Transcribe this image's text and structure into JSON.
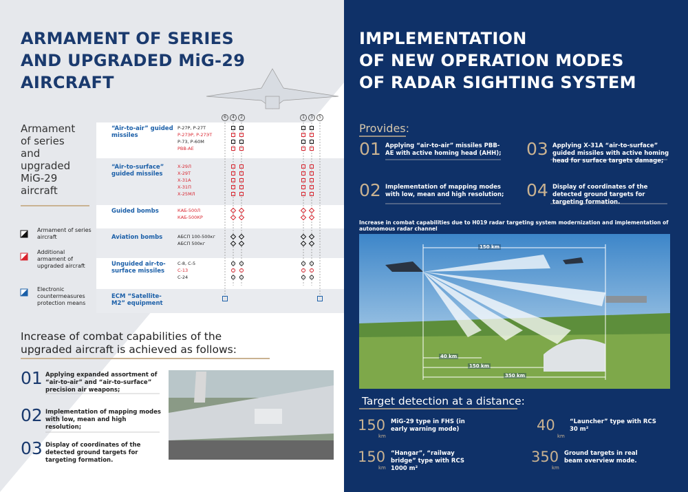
{
  "left": {
    "title": [
      "ARMAMENT OF SERIES",
      "AND UPGRADED MiG-29",
      "AIRCRAFT"
    ],
    "side_title": [
      "Armament",
      "of series",
      "and",
      "upgraded",
      "MiG-29",
      "aircraft"
    ],
    "legend": [
      "Armament of series aircraft",
      "Additional armament of upgraded aircraft",
      "Electronic countermeasures protection means"
    ],
    "pylons": [
      6,
      4,
      2,
      1,
      3,
      5
    ],
    "table": [
      {
        "category": "“Air-to-air” guided missiles",
        "weapons": [
          {
            "name": "Р-27Р, Р-27Т",
            "added": false
          },
          {
            "name": "Р-27ЭР, Р-27ЭТ",
            "added": true
          },
          {
            "name": "Р-73, Р-60М",
            "added": false
          },
          {
            "name": "РВВ-АЕ",
            "added": true
          }
        ]
      },
      {
        "category": "“Air-to-surface” guided missiles",
        "weapons": [
          {
            "name": "Х-29Л",
            "added": true
          },
          {
            "name": "Х-29Т",
            "added": true
          },
          {
            "name": "Х-31А",
            "added": true
          },
          {
            "name": "Х-31П",
            "added": true
          },
          {
            "name": "Х-25МЛ",
            "added": true
          }
        ]
      },
      {
        "category": "Guided bombs",
        "weapons": [
          {
            "name": "КАБ-500Л",
            "added": true
          },
          {
            "name": "КАБ-500КР",
            "added": true
          }
        ]
      },
      {
        "category": "Aviation bombs",
        "weapons": [
          {
            "name": "АБСП 100-500кг",
            "added": false
          },
          {
            "name": "АБСП 500кг",
            "added": false
          }
        ]
      },
      {
        "category": "Unguided air-to-surface missiles",
        "weapons": [
          {
            "name": "С-8, С-5",
            "added": false
          },
          {
            "name": "С-13",
            "added": true
          },
          {
            "name": "С-24",
            "added": false
          }
        ]
      },
      {
        "category": "ECM “Satellite-M2” equipment",
        "weapons": []
      }
    ],
    "achieved_title": "Increase of combat capabilities of the upgraded aircraft is achieved as follows:",
    "items": [
      {
        "number": "01",
        "text": "Applying expanded assortment of “air-to-air” and “air-to-surface” precision air weapons;"
      },
      {
        "number": "02",
        "text": "Implementation of mapping modes with low, mean and high resolution;"
      },
      {
        "number": "03",
        "text": "Display of coordinates of the detected ground targets for targeting formation."
      }
    ]
  },
  "right": {
    "title": [
      "IMPLEMENTATION",
      "OF NEW OPERATION MODES",
      "OF RADAR SIGHTING SYSTEM"
    ],
    "provides_title": "Provides:",
    "items": [
      {
        "number": "01",
        "text": "Applying “air-to-air” missiles РВВ-АЕ with active homing head (AHH);"
      },
      {
        "number": "02",
        "text": "Implementation of mapping modes with low, mean and high resolution;"
      },
      {
        "number": "03",
        "text": "Applying Х-31А “air-to-surface” guided missiles with active homing head for surface targets damage;"
      },
      {
        "number": "04",
        "text": "Display of coordinates of the detected ground targets for targeting formation."
      }
    ],
    "increase_text": "Increase in combat capabilities due to Н019 radar targeting system modernization and implementation of autonomous radar channel",
    "diagram_labels": [
      "150 km",
      "40 km",
      "150 km",
      "350 km"
    ],
    "detection_title": "Target detection at a distance:",
    "detection": [
      {
        "distance": 150,
        "unit": "km",
        "text": "MiG-29 type in FHS (in early warning mode)"
      },
      {
        "distance": 150,
        "unit": "km",
        "text": "“Hangar”, “railway bridge” type with RCS 1000 m²"
      },
      {
        "distance": 40,
        "unit": "km",
        "text": "“Launcher” type with RCS 30 m²"
      },
      {
        "distance": 350,
        "unit": "km",
        "text": "Ground targets in real beam overview mode."
      }
    ]
  }
}
